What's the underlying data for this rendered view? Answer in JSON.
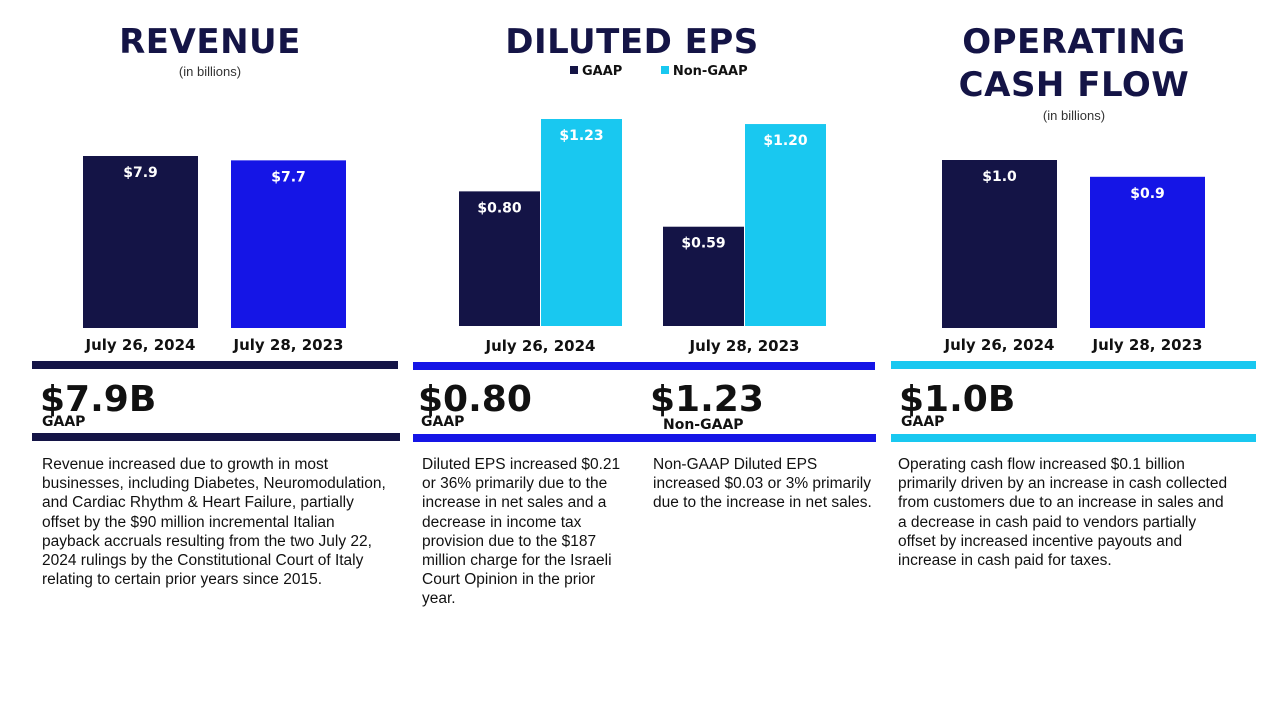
{
  "colors": {
    "navy": "#141446",
    "blue": "#1515e6",
    "cyan": "#19c8f0"
  },
  "revenue": {
    "title": "REVENUE",
    "subtitle": "(in billions)",
    "headline": "$7.9B",
    "basis": "GAAP",
    "description": "Revenue increased due to growth in most businesses, including Diabetes, Neuromodulation, and Cardiac Rhythm & Heart Failure, partially offset by the $90 million incremental Italian payback accruals resulting from the two July 22, 2024 rulings by the Constitutional Court of Italy relating to certain prior years since 2015."
  },
  "eps": {
    "title": "DILUTED EPS",
    "legend": {
      "gaap": "GAAP",
      "nongaap": "Non-GAAP"
    },
    "gaap_headline": "$0.80",
    "gaap_basis": "GAAP",
    "nongaap_headline": "$1.23",
    "nongaap_basis": "Non-GAAP",
    "gaap_description": "Diluted EPS increased $0.21 or 36% primarily due to the increase in net sales and a decrease in income tax provision due to the $187 million charge for the Israeli Court Opinion in the prior year.",
    "nongaap_description": "Non-GAAP Diluted EPS increased $0.03 or 3% primarily due to the increase in net sales."
  },
  "ocf": {
    "title_line1": "OPERATING",
    "title_line2": "CASH FLOW",
    "subtitle": "(in billions)",
    "headline": "$1.0B",
    "basis": "GAAP",
    "description": "Operating cash flow increased $0.1 billion primarily driven by an increase in cash collected from customers due to an increase in sales and a decrease in cash paid to vendors partially offset by increased incentive payouts and increase in cash paid for taxes."
  },
  "chart_data": [
    {
      "type": "bar",
      "title": "REVENUE",
      "categories": [
        "July 26, 2024",
        "July 28, 2023"
      ],
      "values": [
        7.9,
        7.7
      ],
      "data_labels": [
        "$7.9",
        "$7.7"
      ],
      "bar_colors": [
        "#141446",
        "#1515e6"
      ]
    },
    {
      "type": "bar",
      "title": "DILUTED EPS",
      "categories": [
        "July 26, 2024",
        "July 28, 2023"
      ],
      "series": [
        {
          "name": "GAAP",
          "values": [
            0.8,
            0.59
          ],
          "data_labels": [
            "$0.80",
            "$0.59"
          ],
          "color": "#141446"
        },
        {
          "name": "Non-GAAP",
          "values": [
            1.23,
            1.2
          ],
          "data_labels": [
            "$1.23",
            "$1.20"
          ],
          "color": "#19c8f0"
        }
      ],
      "legend": "top"
    },
    {
      "type": "bar",
      "title": "OPERATING CASH FLOW",
      "categories": [
        "July 26, 2024",
        "July 28, 2023"
      ],
      "values": [
        1.0,
        0.9
      ],
      "data_labels": [
        "$1.0",
        "$0.9"
      ],
      "bar_colors": [
        "#141446",
        "#1515e6"
      ]
    }
  ]
}
